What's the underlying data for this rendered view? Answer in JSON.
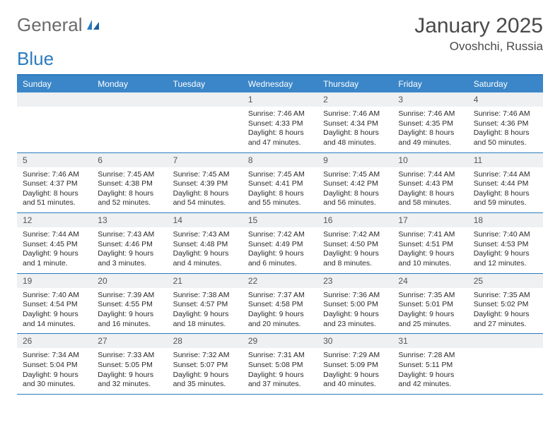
{
  "logo": {
    "text1": "General",
    "text2": "Blue"
  },
  "header": {
    "title": "January 2025",
    "location": "Ovoshchi, Russia"
  },
  "colors": {
    "accent": "#3b86c8",
    "accent_border": "#2b7bbf",
    "day_bg": "#eef0f1",
    "text": "#1a1a1a",
    "muted": "#4a4a4a"
  },
  "dayNames": [
    "Sunday",
    "Monday",
    "Tuesday",
    "Wednesday",
    "Thursday",
    "Friday",
    "Saturday"
  ],
  "weeks": [
    [
      {
        "n": "",
        "lines": []
      },
      {
        "n": "",
        "lines": []
      },
      {
        "n": "",
        "lines": []
      },
      {
        "n": "1",
        "lines": [
          "Sunrise: 7:46 AM",
          "Sunset: 4:33 PM",
          "Daylight: 8 hours and 47 minutes."
        ]
      },
      {
        "n": "2",
        "lines": [
          "Sunrise: 7:46 AM",
          "Sunset: 4:34 PM",
          "Daylight: 8 hours and 48 minutes."
        ]
      },
      {
        "n": "3",
        "lines": [
          "Sunrise: 7:46 AM",
          "Sunset: 4:35 PM",
          "Daylight: 8 hours and 49 minutes."
        ]
      },
      {
        "n": "4",
        "lines": [
          "Sunrise: 7:46 AM",
          "Sunset: 4:36 PM",
          "Daylight: 8 hours and 50 minutes."
        ]
      }
    ],
    [
      {
        "n": "5",
        "lines": [
          "Sunrise: 7:46 AM",
          "Sunset: 4:37 PM",
          "Daylight: 8 hours and 51 minutes."
        ]
      },
      {
        "n": "6",
        "lines": [
          "Sunrise: 7:45 AM",
          "Sunset: 4:38 PM",
          "Daylight: 8 hours and 52 minutes."
        ]
      },
      {
        "n": "7",
        "lines": [
          "Sunrise: 7:45 AM",
          "Sunset: 4:39 PM",
          "Daylight: 8 hours and 54 minutes."
        ]
      },
      {
        "n": "8",
        "lines": [
          "Sunrise: 7:45 AM",
          "Sunset: 4:41 PM",
          "Daylight: 8 hours and 55 minutes."
        ]
      },
      {
        "n": "9",
        "lines": [
          "Sunrise: 7:45 AM",
          "Sunset: 4:42 PM",
          "Daylight: 8 hours and 56 minutes."
        ]
      },
      {
        "n": "10",
        "lines": [
          "Sunrise: 7:44 AM",
          "Sunset: 4:43 PM",
          "Daylight: 8 hours and 58 minutes."
        ]
      },
      {
        "n": "11",
        "lines": [
          "Sunrise: 7:44 AM",
          "Sunset: 4:44 PM",
          "Daylight: 8 hours and 59 minutes."
        ]
      }
    ],
    [
      {
        "n": "12",
        "lines": [
          "Sunrise: 7:44 AM",
          "Sunset: 4:45 PM",
          "Daylight: 9 hours and 1 minute."
        ]
      },
      {
        "n": "13",
        "lines": [
          "Sunrise: 7:43 AM",
          "Sunset: 4:46 PM",
          "Daylight: 9 hours and 3 minutes."
        ]
      },
      {
        "n": "14",
        "lines": [
          "Sunrise: 7:43 AM",
          "Sunset: 4:48 PM",
          "Daylight: 9 hours and 4 minutes."
        ]
      },
      {
        "n": "15",
        "lines": [
          "Sunrise: 7:42 AM",
          "Sunset: 4:49 PM",
          "Daylight: 9 hours and 6 minutes."
        ]
      },
      {
        "n": "16",
        "lines": [
          "Sunrise: 7:42 AM",
          "Sunset: 4:50 PM",
          "Daylight: 9 hours and 8 minutes."
        ]
      },
      {
        "n": "17",
        "lines": [
          "Sunrise: 7:41 AM",
          "Sunset: 4:51 PM",
          "Daylight: 9 hours and 10 minutes."
        ]
      },
      {
        "n": "18",
        "lines": [
          "Sunrise: 7:40 AM",
          "Sunset: 4:53 PM",
          "Daylight: 9 hours and 12 minutes."
        ]
      }
    ],
    [
      {
        "n": "19",
        "lines": [
          "Sunrise: 7:40 AM",
          "Sunset: 4:54 PM",
          "Daylight: 9 hours and 14 minutes."
        ]
      },
      {
        "n": "20",
        "lines": [
          "Sunrise: 7:39 AM",
          "Sunset: 4:55 PM",
          "Daylight: 9 hours and 16 minutes."
        ]
      },
      {
        "n": "21",
        "lines": [
          "Sunrise: 7:38 AM",
          "Sunset: 4:57 PM",
          "Daylight: 9 hours and 18 minutes."
        ]
      },
      {
        "n": "22",
        "lines": [
          "Sunrise: 7:37 AM",
          "Sunset: 4:58 PM",
          "Daylight: 9 hours and 20 minutes."
        ]
      },
      {
        "n": "23",
        "lines": [
          "Sunrise: 7:36 AM",
          "Sunset: 5:00 PM",
          "Daylight: 9 hours and 23 minutes."
        ]
      },
      {
        "n": "24",
        "lines": [
          "Sunrise: 7:35 AM",
          "Sunset: 5:01 PM",
          "Daylight: 9 hours and 25 minutes."
        ]
      },
      {
        "n": "25",
        "lines": [
          "Sunrise: 7:35 AM",
          "Sunset: 5:02 PM",
          "Daylight: 9 hours and 27 minutes."
        ]
      }
    ],
    [
      {
        "n": "26",
        "lines": [
          "Sunrise: 7:34 AM",
          "Sunset: 5:04 PM",
          "Daylight: 9 hours and 30 minutes."
        ]
      },
      {
        "n": "27",
        "lines": [
          "Sunrise: 7:33 AM",
          "Sunset: 5:05 PM",
          "Daylight: 9 hours and 32 minutes."
        ]
      },
      {
        "n": "28",
        "lines": [
          "Sunrise: 7:32 AM",
          "Sunset: 5:07 PM",
          "Daylight: 9 hours and 35 minutes."
        ]
      },
      {
        "n": "29",
        "lines": [
          "Sunrise: 7:31 AM",
          "Sunset: 5:08 PM",
          "Daylight: 9 hours and 37 minutes."
        ]
      },
      {
        "n": "30",
        "lines": [
          "Sunrise: 7:29 AM",
          "Sunset: 5:09 PM",
          "Daylight: 9 hours and 40 minutes."
        ]
      },
      {
        "n": "31",
        "lines": [
          "Sunrise: 7:28 AM",
          "Sunset: 5:11 PM",
          "Daylight: 9 hours and 42 minutes."
        ]
      },
      {
        "n": "",
        "lines": []
      }
    ]
  ]
}
